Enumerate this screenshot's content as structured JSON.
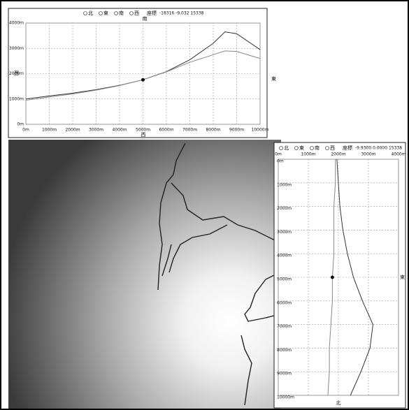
{
  "ui": {
    "top": {
      "radios": [
        "北",
        "東",
        "南",
        "西"
      ],
      "coord_label": "座標",
      "coord": "-18316 -9,032 15338",
      "top_label": "南",
      "left_label": "西",
      "right_label": "東",
      "bottom_label": "西"
    },
    "side": {
      "radios": [
        "北",
        "東",
        "南",
        "西"
      ],
      "coord_label": "座標",
      "coord": "-9.9300 0.0000 15338",
      "right_label": "東",
      "bottom_label": "北"
    }
  },
  "chart_data": [
    {
      "type": "line",
      "orientation": "horizontal",
      "x": [
        0,
        1000,
        2000,
        3000,
        4000,
        5000,
        6000,
        7000,
        8000,
        8500,
        9000,
        10000
      ],
      "series": [
        {
          "color": "#333333",
          "values": [
            1000,
            1120,
            1230,
            1370,
            1540,
            1760,
            2080,
            2550,
            3200,
            3650,
            3580,
            2950
          ]
        },
        {
          "color": "#888888",
          "values": [
            950,
            1080,
            1200,
            1350,
            1530,
            1760,
            2070,
            2450,
            2750,
            2900,
            2880,
            2600
          ]
        }
      ],
      "marker": {
        "x": 5000,
        "y": 1760
      },
      "xlim": [
        0,
        10000
      ],
      "xticks": [
        {
          "value": 0,
          "label": "0m"
        },
        {
          "value": 1000,
          "label": "1000m"
        },
        {
          "value": 2000,
          "label": "2000m"
        },
        {
          "value": 3000,
          "label": "3000m"
        },
        {
          "value": 4000,
          "label": "4000m"
        },
        {
          "value": 5000,
          "label": "5000m"
        },
        {
          "value": 6000,
          "label": "6000m"
        },
        {
          "value": 7000,
          "label": "7000m"
        },
        {
          "value": 8000,
          "label": "8000m"
        },
        {
          "value": 9000,
          "label": "9000m"
        },
        {
          "value": 10000,
          "label": "10000m"
        }
      ],
      "ylim": [
        0,
        4000
      ],
      "yticks": [
        {
          "value": 0,
          "label": "0m"
        },
        {
          "value": 1000,
          "label": "1000m"
        },
        {
          "value": 2000,
          "label": "2000m"
        },
        {
          "value": 3000,
          "label": "3000m"
        },
        {
          "value": 4000,
          "label": "4000m"
        }
      ],
      "grid": true
    },
    {
      "type": "line",
      "orientation": "vertical",
      "x": [
        0,
        1000,
        2000,
        3000,
        4000,
        5000,
        6000,
        7000,
        8000,
        9000,
        10000
      ],
      "series": [
        {
          "color": "#333333",
          "values": [
            1950,
            2000,
            2050,
            2150,
            2300,
            2500,
            2800,
            3150,
            3050,
            2750,
            2400
          ]
        },
        {
          "color": "#888888",
          "values": [
            1900,
            1900,
            1850,
            1850,
            1850,
            1800,
            1800,
            1750,
            1700,
            1700,
            1650
          ]
        }
      ],
      "marker": {
        "x": 5000,
        "y": 1800
      },
      "xlim": [
        0,
        10000
      ],
      "xticks": [
        {
          "value": 0,
          "label": "0m"
        },
        {
          "value": 1000,
          "label": "1000m"
        },
        {
          "value": 2000,
          "label": "2000m"
        },
        {
          "value": 3000,
          "label": "3000m"
        },
        {
          "value": 4000,
          "label": "4000m"
        },
        {
          "value": 5000,
          "label": "5000m"
        },
        {
          "value": 6000,
          "label": "6000m"
        },
        {
          "value": 7000,
          "label": "7000m"
        },
        {
          "value": 8000,
          "label": "8000m"
        },
        {
          "value": 9000,
          "label": "9000m"
        },
        {
          "value": 10000,
          "label": "10000m"
        }
      ],
      "ylim": [
        0,
        4000
      ],
      "yticks": [
        {
          "value": 0,
          "label": "0m"
        },
        {
          "value": 1000,
          "label": "1000m"
        },
        {
          "value": 2000,
          "label": "2000m"
        },
        {
          "value": 3000,
          "label": "3000m"
        },
        {
          "value": 4000,
          "label": "4000m"
        }
      ],
      "grid": true
    }
  ]
}
